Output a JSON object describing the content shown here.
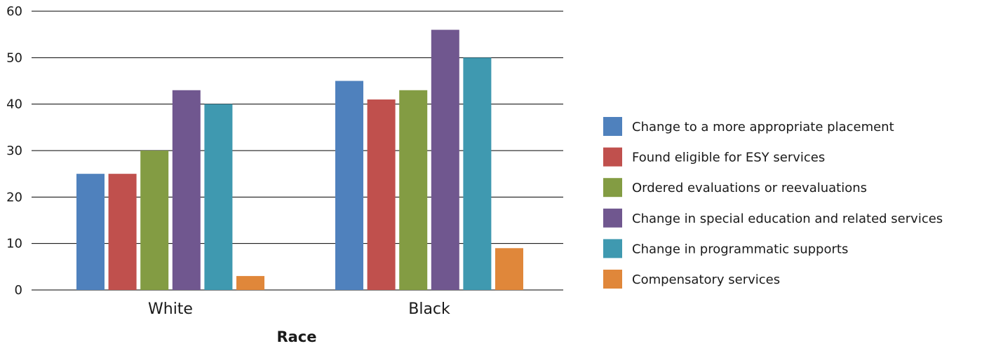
{
  "chart_data": {
    "type": "bar",
    "title": "",
    "xlabel": "Race",
    "ylabel": "",
    "categories": [
      "White",
      "Black"
    ],
    "ylim": [
      0,
      60
    ],
    "yticks": [
      0,
      10,
      20,
      30,
      40,
      50,
      60
    ],
    "grid": true,
    "legend_position": "right",
    "series": [
      {
        "name": "Change to a more appropriate placement",
        "color": "#4F81BD",
        "values": [
          25,
          45
        ]
      },
      {
        "name": "Found eligible for ESY services",
        "color": "#C0504D",
        "values": [
          25,
          41
        ]
      },
      {
        "name": "Ordered evaluations or reevaluations",
        "color": "#839C43",
        "values": [
          30,
          43
        ]
      },
      {
        "name": "Change in special education and related services",
        "color": "#70578F",
        "values": [
          43,
          56
        ]
      },
      {
        "name": "Change in programmatic supports",
        "color": "#3F99B0",
        "values": [
          40,
          50
        ]
      },
      {
        "name": "Compensatory services",
        "color": "#E0873A",
        "values": [
          3,
          9
        ]
      }
    ]
  }
}
